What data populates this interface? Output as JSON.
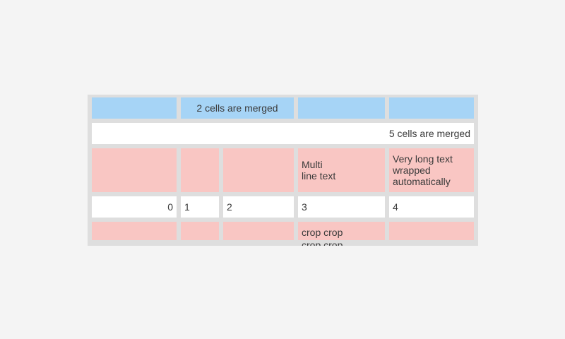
{
  "page": {
    "background_color": "#f4f4f4"
  },
  "table": {
    "colors": {
      "header_cell": "#a6d4f6",
      "highlight_cell": "#f9c6c3",
      "frame": "#dedede",
      "plain_cell": "#ffffff",
      "text": "#3a3a3a"
    },
    "row1": {
      "merged_label": "2 cells are merged"
    },
    "row2": {
      "merged_label": "5 cells are merged"
    },
    "row3": {
      "multi_line_label": "Multi\nline text",
      "wrapped_label": "Very long text wrapped automatically"
    },
    "row4": {
      "numbers": [
        "0",
        "1",
        "2",
        "3",
        "4"
      ]
    },
    "row5": {
      "cropped_label": "crop crop\ncrop crop"
    }
  }
}
